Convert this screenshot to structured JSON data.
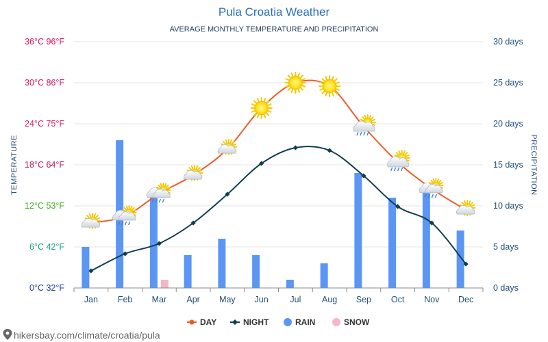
{
  "chart_data": {
    "type": "line+bar",
    "title": "Pula Croatia Weather",
    "subtitle": "AVERAGE MONTHLY TEMPERATURE AND PRECIPITATION",
    "categories": [
      "Jan",
      "Feb",
      "Mar",
      "Apr",
      "May",
      "Jun",
      "Jul",
      "Aug",
      "Sep",
      "Oct",
      "Nov",
      "Dec"
    ],
    "y_left": {
      "label": "TEMPERATURE",
      "range_c": [
        0,
        36
      ],
      "ticks": [
        {
          "value": 0,
          "text": "0°C 32°F",
          "color": "#1f3aa8"
        },
        {
          "value": 6,
          "text": "6°C 42°F",
          "color": "#12a37a"
        },
        {
          "value": 12,
          "text": "12°C 53°F",
          "color": "#3aab1e"
        },
        {
          "value": 18,
          "text": "18°C 64°F",
          "color": "#c2185b"
        },
        {
          "value": 24,
          "text": "24°C 75°F",
          "color": "#d81b60"
        },
        {
          "value": 30,
          "text": "30°C 86°F",
          "color": "#e0115f"
        },
        {
          "value": 36,
          "text": "36°C 96°F",
          "color": "#e0115f"
        }
      ]
    },
    "y_right": {
      "label": "PRECIPITATION",
      "range_days": [
        0,
        30
      ],
      "ticks": [
        {
          "value": 0,
          "text": "0 days"
        },
        {
          "value": 5,
          "text": "5 days"
        },
        {
          "value": 10,
          "text": "10 days"
        },
        {
          "value": 15,
          "text": "15 days"
        },
        {
          "value": 20,
          "text": "20 days"
        },
        {
          "value": 25,
          "text": "25 days"
        },
        {
          "value": 30,
          "text": "30 days"
        }
      ]
    },
    "series": [
      {
        "name": "DAY",
        "kind": "line",
        "color": "#f05a22",
        "unit": "°C",
        "values": [
          9.5,
          10.5,
          13.8,
          16.5,
          20.3,
          26.3,
          30.0,
          29.5,
          23.6,
          18.4,
          14.5,
          11.4
        ]
      },
      {
        "name": "NIGHT",
        "kind": "line",
        "color": "#0f3e4e",
        "unit": "°C",
        "values": [
          2.5,
          5.0,
          6.5,
          9.5,
          13.7,
          18.2,
          20.5,
          20.1,
          16.4,
          11.9,
          9.5,
          3.5
        ]
      },
      {
        "name": "RAIN",
        "kind": "bar",
        "color": "#5b96f5",
        "unit": "days",
        "values": [
          5,
          18,
          11,
          4,
          6,
          4,
          1,
          3,
          14,
          11,
          12,
          7
        ]
      },
      {
        "name": "SNOW",
        "kind": "bar",
        "color": "#f7b6c6",
        "unit": "days",
        "values": [
          0,
          0,
          1,
          0,
          0,
          0,
          0,
          0,
          0,
          0,
          0,
          0
        ]
      }
    ],
    "day_icons": [
      "partly-sunny-icon",
      "cloudy-rain-icon",
      "cloudy-rain-icon",
      "partly-sunny-icon",
      "partly-sunny-icon",
      "sun-icon",
      "sun-icon",
      "sun-icon",
      "rain-cloud-icon",
      "rain-cloud-icon",
      "cloudy-rain-icon",
      "partly-sunny-icon"
    ],
    "legend": [
      {
        "label": "DAY",
        "color": "#f05a22",
        "marker": "line-dot"
      },
      {
        "label": "NIGHT",
        "color": "#0f3e4e",
        "marker": "line-diamond"
      },
      {
        "label": "RAIN",
        "color": "#5b96f5",
        "marker": "circle"
      },
      {
        "label": "SNOW",
        "color": "#f7b6c6",
        "marker": "circle"
      }
    ],
    "grid": true
  },
  "source": "hikersbay.com/climate/croatia/pula"
}
